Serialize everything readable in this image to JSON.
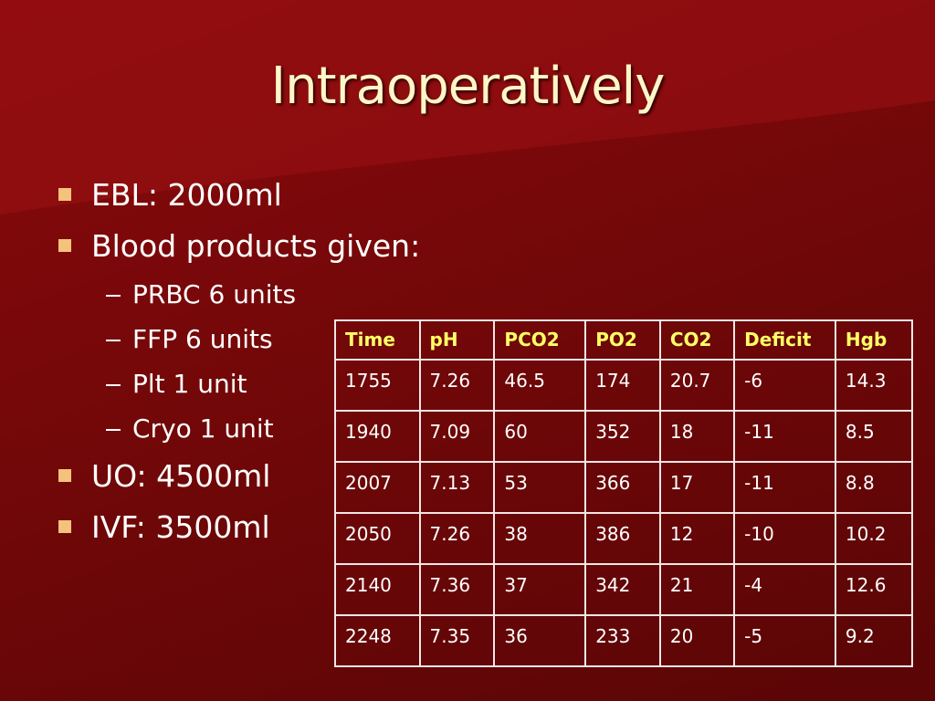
{
  "title": "Intraoperatively",
  "bullets": [
    {
      "text": "EBL: 2000ml"
    },
    {
      "text": "Blood products given:",
      "subitems": [
        "PRBC 6 units",
        "FFP 6 units",
        "Plt 1 unit",
        "Cryo 1 unit"
      ]
    },
    {
      "text": "UO: 4500ml"
    },
    {
      "text": "IVF: 3500ml"
    }
  ],
  "table": {
    "header": [
      "Time",
      "pH",
      "PCO2",
      "PO2",
      "CO2",
      "Deficit",
      "Hgb"
    ],
    "rows": [
      [
        "1755",
        "7.26",
        "46.5",
        "174",
        "20.7",
        "-6",
        "14.3"
      ],
      [
        "1940",
        "7.09",
        "60",
        "352",
        "18",
        "-11",
        "8.5"
      ],
      [
        "2007",
        "7.13",
        "53",
        "366",
        "17",
        "-11",
        "8.8"
      ],
      [
        "2050",
        "7.26",
        "38",
        "386",
        "12",
        "-10",
        "10.2"
      ],
      [
        "2140",
        "7.36",
        "37",
        "342",
        "21",
        "-4",
        "12.6"
      ],
      [
        "2248",
        "7.35",
        "36",
        "233",
        "20",
        "-5",
        "9.2"
      ]
    ]
  }
}
